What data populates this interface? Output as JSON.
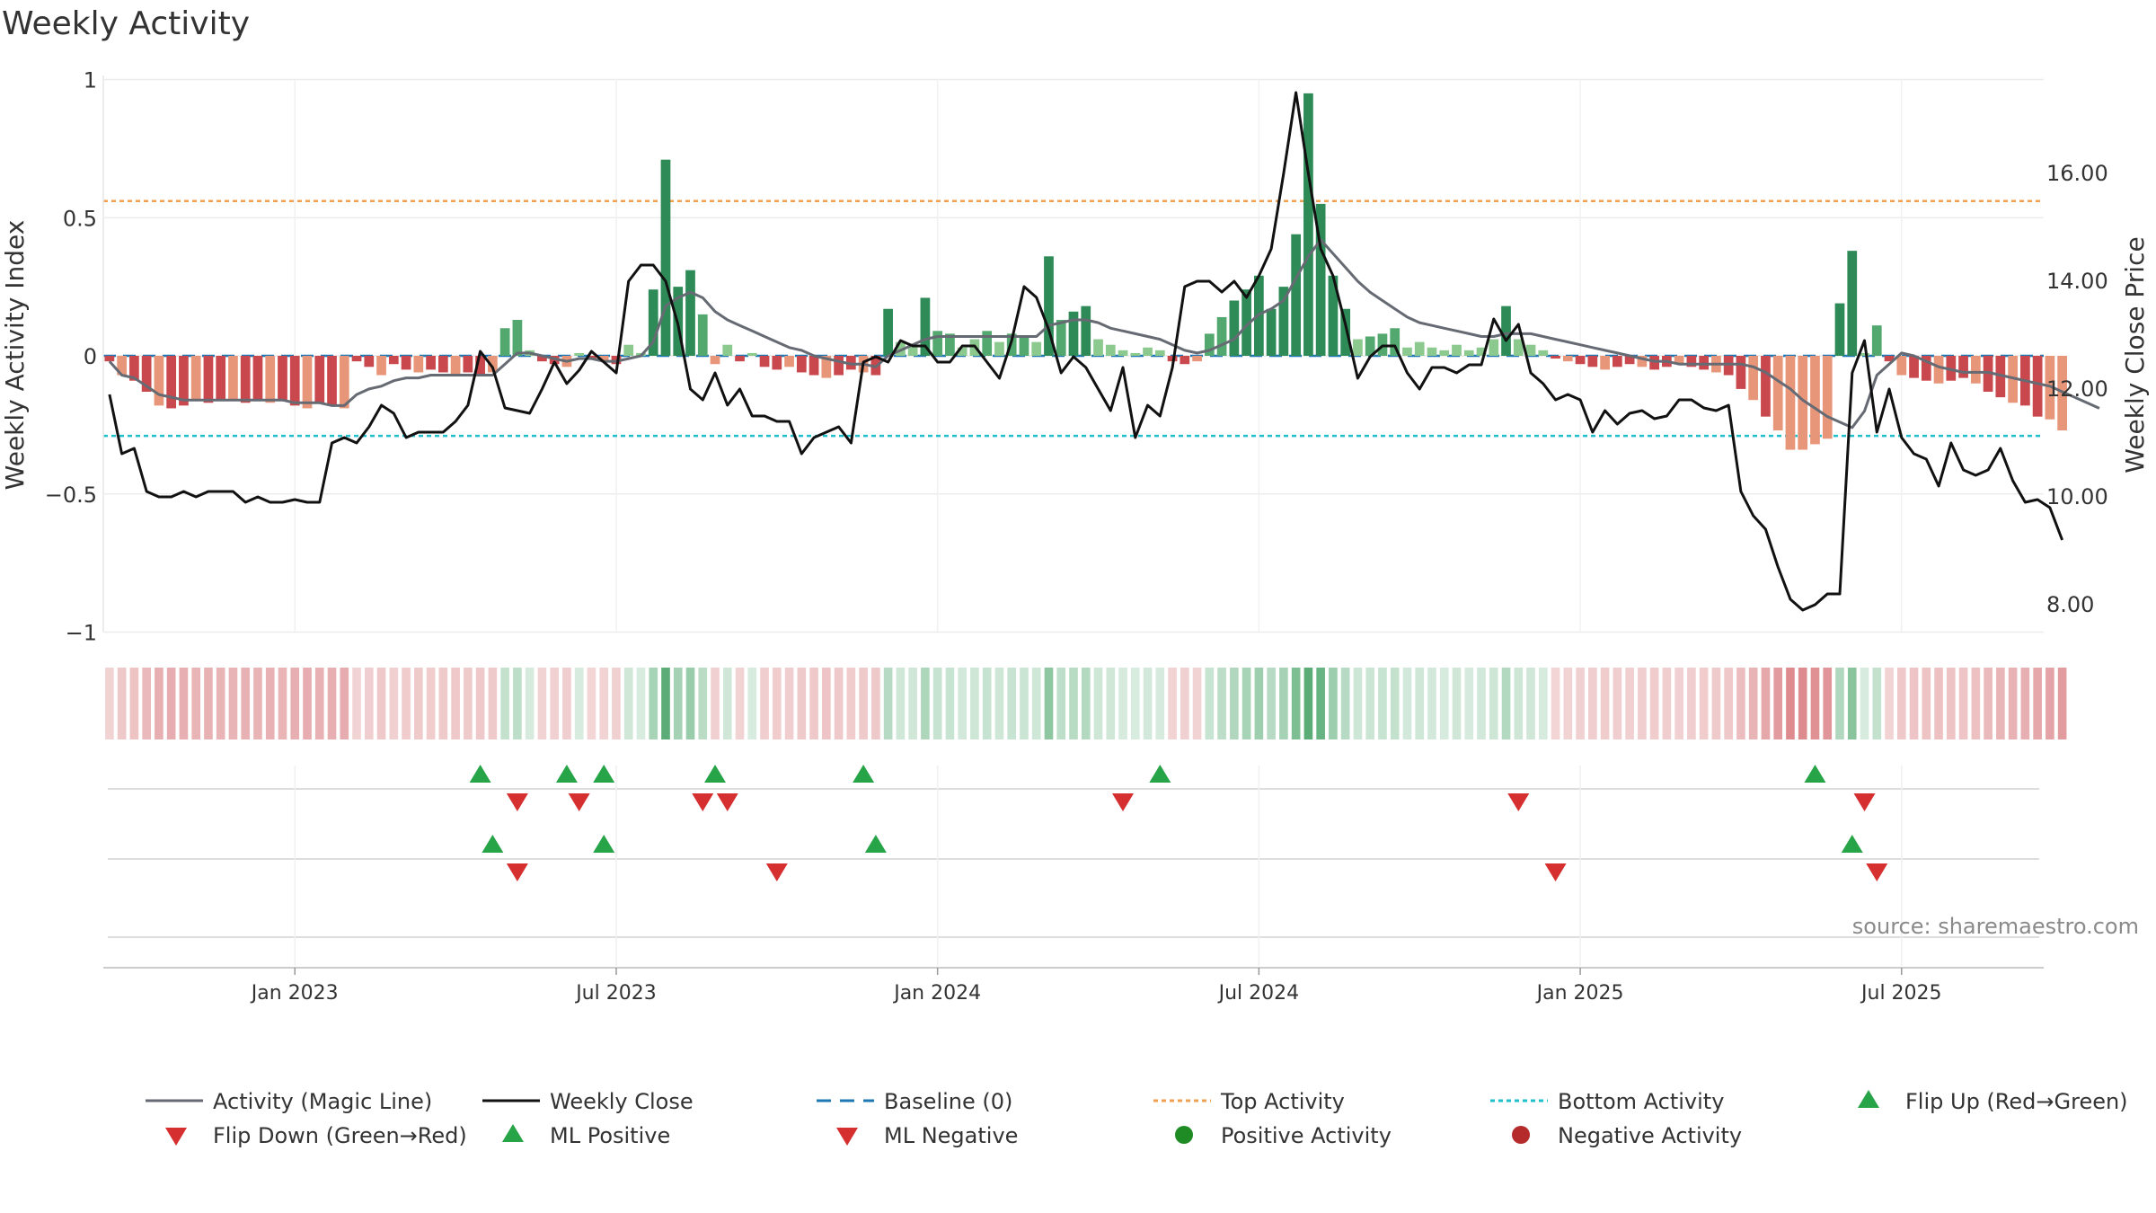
{
  "chart_data": {
    "type": "bar",
    "title": "Weekly Activity",
    "ylabel_left": "Weekly Activity Index",
    "ylabel_right": "Weekly Close Price",
    "xlabel": "",
    "ylim_left": [
      -1,
      1
    ],
    "ylim_right": [
      7.5,
      17.75
    ],
    "yticks_left": [
      {
        "value": 1,
        "label": "1"
      },
      {
        "value": 0.5,
        "label": "0.5"
      },
      {
        "value": 0,
        "label": "0"
      },
      {
        "value": -0.5,
        "label": "−0.5"
      },
      {
        "value": -1,
        "label": "−1"
      }
    ],
    "yticks_right": [
      {
        "value": 16,
        "label": "16.00"
      },
      {
        "value": 14,
        "label": "14.00"
      },
      {
        "value": 12,
        "label": "12.00"
      },
      {
        "value": 10,
        "label": "10.00"
      },
      {
        "value": 8,
        "label": "8.00"
      }
    ],
    "x_range_weeks": [
      0,
      157
    ],
    "xticks": [
      {
        "week": 15.5,
        "label": "Jan 2023"
      },
      {
        "week": 41.5,
        "label": "Jul 2023"
      },
      {
        "week": 67.5,
        "label": "Jan 2024"
      },
      {
        "week": 93.5,
        "label": "Jul 2024"
      },
      {
        "week": 119.5,
        "label": "Jan 2025"
      },
      {
        "week": 145.5,
        "label": "Jul 2025"
      }
    ],
    "top_activity": 0.56,
    "bottom_activity": -0.29,
    "baseline": 0,
    "activity": [
      -0.02,
      -0.07,
      -0.09,
      -0.13,
      -0.18,
      -0.19,
      -0.18,
      -0.16,
      -0.17,
      -0.16,
      -0.16,
      -0.17,
      -0.16,
      -0.17,
      -0.16,
      -0.18,
      -0.19,
      -0.17,
      -0.18,
      -0.19,
      -0.02,
      -0.04,
      -0.07,
      -0.03,
      -0.05,
      -0.06,
      -0.05,
      -0.06,
      -0.07,
      -0.06,
      -0.07,
      -0.06,
      0.1,
      0.13,
      0.02,
      -0.02,
      -0.03,
      -0.04,
      0.01,
      -0.01,
      -0.02,
      -0.03,
      0.04,
      0.01,
      0.24,
      0.71,
      0.25,
      0.31,
      0.15,
      -0.03,
      0.04,
      -0.02,
      0.01,
      -0.04,
      -0.05,
      -0.04,
      -0.06,
      -0.07,
      -0.08,
      -0.07,
      -0.05,
      -0.06,
      -0.07,
      0.17,
      0.05,
      0.04,
      0.21,
      0.09,
      0.08,
      0.03,
      0.06,
      0.09,
      0.05,
      0.08,
      0.07,
      0.05,
      0.36,
      0.13,
      0.16,
      0.18,
      0.06,
      0.04,
      0.02,
      0.01,
      0.03,
      0.02,
      -0.02,
      -0.03,
      -0.02,
      0.08,
      0.14,
      0.2,
      0.24,
      0.29,
      0.17,
      0.25,
      0.44,
      0.95,
      0.55,
      0.29,
      0.17,
      0.06,
      0.07,
      0.08,
      0.1,
      0.03,
      0.05,
      0.03,
      0.02,
      0.04,
      0.02,
      0.03,
      0.06,
      0.18,
      0.06,
      0.04,
      0.02,
      -0.01,
      -0.02,
      -0.03,
      -0.04,
      -0.05,
      -0.04,
      -0.03,
      -0.04,
      -0.05,
      -0.04,
      -0.03,
      -0.04,
      -0.05,
      -0.06,
      -0.07,
      -0.12,
      -0.16,
      -0.22,
      -0.27,
      -0.34,
      -0.34,
      -0.32,
      -0.3,
      0.19,
      0.38,
      0.01,
      0.11,
      -0.02,
      -0.07,
      -0.08,
      -0.09,
      -0.1,
      -0.09,
      -0.08,
      -0.1,
      -0.13,
      -0.15,
      -0.17,
      -0.18,
      -0.22,
      -0.23,
      -0.27
    ],
    "magic_line": [
      -0.02,
      -0.07,
      -0.08,
      -0.11,
      -0.14,
      -0.15,
      -0.16,
      -0.16,
      -0.16,
      -0.16,
      -0.16,
      -0.16,
      -0.16,
      -0.16,
      -0.16,
      -0.17,
      -0.17,
      -0.17,
      -0.18,
      -0.18,
      -0.14,
      -0.12,
      -0.11,
      -0.09,
      -0.08,
      -0.08,
      -0.07,
      -0.07,
      -0.07,
      -0.07,
      -0.07,
      -0.07,
      -0.03,
      0.01,
      0.01,
      0.0,
      -0.01,
      -0.02,
      -0.01,
      -0.01,
      -0.02,
      -0.02,
      -0.01,
      0.0,
      0.05,
      0.18,
      0.21,
      0.23,
      0.21,
      0.16,
      0.13,
      0.11,
      0.09,
      0.07,
      0.05,
      0.03,
      0.02,
      0.0,
      -0.01,
      -0.02,
      -0.03,
      -0.03,
      -0.04,
      0.0,
      0.02,
      0.04,
      0.06,
      0.07,
      0.07,
      0.07,
      0.07,
      0.07,
      0.07,
      0.07,
      0.07,
      0.07,
      0.11,
      0.12,
      0.13,
      0.13,
      0.12,
      0.1,
      0.09,
      0.08,
      0.07,
      0.06,
      0.04,
      0.02,
      0.01,
      0.02,
      0.04,
      0.06,
      0.11,
      0.15,
      0.17,
      0.2,
      0.28,
      0.36,
      0.42,
      0.37,
      0.32,
      0.27,
      0.23,
      0.2,
      0.17,
      0.14,
      0.12,
      0.11,
      0.1,
      0.09,
      0.08,
      0.07,
      0.07,
      0.08,
      0.08,
      0.08,
      0.07,
      0.06,
      0.05,
      0.04,
      0.03,
      0.02,
      0.01,
      0.0,
      -0.01,
      -0.02,
      -0.02,
      -0.03,
      -0.03,
      -0.03,
      -0.03,
      -0.03,
      -0.03,
      -0.04,
      -0.06,
      -0.09,
      -0.12,
      -0.16,
      -0.19,
      -0.22,
      -0.24,
      -0.26,
      -0.2,
      -0.07,
      -0.03,
      0.01,
      0.0,
      -0.02,
      -0.04,
      -0.05,
      -0.06,
      -0.06,
      -0.06,
      -0.07,
      -0.08,
      -0.09,
      -0.1,
      -0.11,
      -0.13,
      -0.15,
      -0.17,
      -0.19
    ],
    "weekly_close": [
      11.9,
      10.8,
      10.9,
      10.1,
      10.0,
      10.0,
      10.1,
      10.0,
      10.1,
      10.1,
      10.1,
      9.9,
      10.0,
      9.9,
      9.9,
      9.95,
      9.9,
      9.9,
      11.0,
      11.1,
      11.0,
      11.3,
      11.7,
      11.55,
      11.1,
      11.2,
      11.2,
      11.2,
      11.4,
      11.7,
      12.7,
      12.4,
      11.65,
      11.6,
      11.55,
      12.0,
      12.5,
      12.1,
      12.35,
      12.7,
      12.5,
      12.3,
      14.0,
      14.3,
      14.3,
      14.0,
      13.2,
      12.0,
      11.8,
      12.3,
      11.7,
      12.0,
      11.5,
      11.5,
      11.4,
      11.4,
      10.8,
      11.1,
      11.2,
      11.3,
      11.0,
      12.5,
      12.6,
      12.5,
      12.9,
      12.8,
      12.8,
      12.5,
      12.5,
      12.8,
      12.8,
      12.5,
      12.2,
      12.9,
      13.9,
      13.7,
      13.1,
      12.3,
      12.6,
      12.4,
      12.0,
      11.6,
      12.4,
      11.1,
      11.7,
      11.5,
      12.4,
      13.9,
      14.0,
      14.0,
      13.8,
      14.0,
      13.7,
      14.1,
      14.6,
      16.0,
      17.5,
      16.0,
      14.6,
      14.1,
      13.2,
      12.2,
      12.6,
      12.8,
      12.8,
      12.3,
      12.0,
      12.4,
      12.4,
      12.3,
      12.45,
      12.45,
      13.3,
      12.9,
      13.2,
      12.3,
      12.1,
      11.8,
      11.9,
      11.8,
      11.2,
      11.6,
      11.35,
      11.55,
      11.6,
      11.45,
      11.5,
      11.8,
      11.8,
      11.65,
      11.6,
      11.7,
      10.1,
      9.65,
      9.4,
      8.7,
      8.1,
      7.9,
      8.0,
      8.2,
      8.2,
      12.3,
      12.9,
      11.2,
      12.0,
      11.1,
      10.8,
      10.7,
      10.2,
      11.0,
      10.5,
      10.4,
      10.5,
      10.9,
      10.3,
      9.9,
      9.95,
      9.8,
      9.2
    ],
    "strip_week_range": [
      0,
      157
    ],
    "flip_up_weeks": [
      30,
      37,
      40,
      49,
      61,
      85,
      138
    ],
    "flip_down_weeks": [
      33,
      38,
      48,
      50,
      82,
      114,
      142
    ],
    "ml_positive_weeks": [
      31,
      40,
      62,
      141
    ],
    "ml_negative_weeks": [
      33,
      54,
      117,
      143
    ],
    "source_text": "source: sharemaestro.com",
    "legend": [
      {
        "key": "magic",
        "label": "Activity (Magic Line)"
      },
      {
        "key": "close",
        "label": "Weekly Close"
      },
      {
        "key": "baseline",
        "label": "Baseline (0)"
      },
      {
        "key": "top",
        "label": "Top Activity"
      },
      {
        "key": "bottom",
        "label": "Bottom Activity"
      },
      {
        "key": "flipup",
        "label": "Flip Up (Red→Green)"
      },
      {
        "key": "flipdown",
        "label": "Flip Down (Green→Red)"
      },
      {
        "key": "mlpos",
        "label": "ML Positive"
      },
      {
        "key": "mlneg",
        "label": "ML Negative"
      },
      {
        "key": "posact",
        "label": "Positive Activity"
      },
      {
        "key": "negact",
        "label": "Negative Activity"
      }
    ],
    "colors": {
      "green_dark": "#2e8b57",
      "green_mid": "#52a86f",
      "green_light": "#8cc98f",
      "red_dark": "#c9484d",
      "red_light": "#e8967a",
      "magic_line": "#666a73",
      "close_line": "#111111",
      "baseline": "#1f77b4",
      "top_line": "#f0a050",
      "bottom_line": "#1fc0cc",
      "marker_green": "#27a348",
      "marker_red": "#d62f2f",
      "pos_dot": "#1f8b24",
      "neg_dot": "#b52a2a"
    }
  }
}
